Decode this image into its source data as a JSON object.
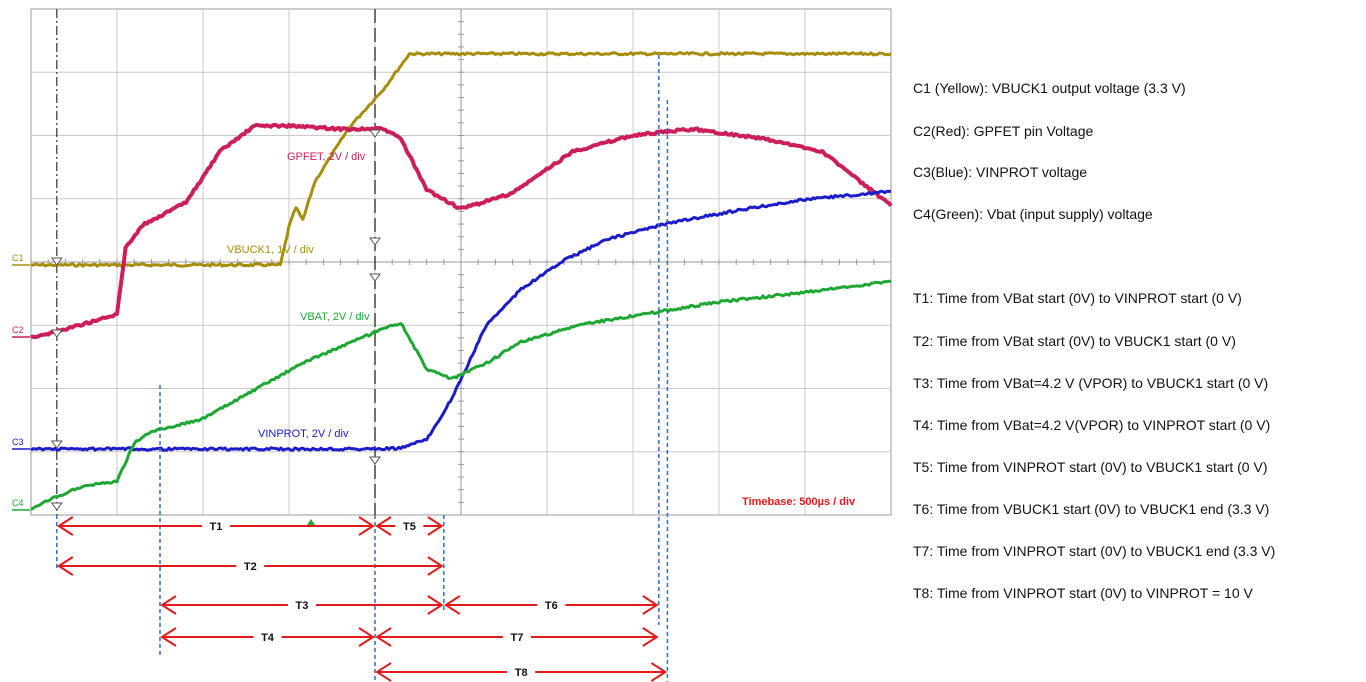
{
  "chart_data": {
    "type": "line",
    "title": "",
    "timebase_label": "Timebase: 500µs / div",
    "x_unit": "µs",
    "xlim": [
      0,
      5000
    ],
    "grid": true,
    "divisions": {
      "x": 10,
      "y": 8
    },
    "channel_markers": [
      "C1",
      "C2",
      "C3",
      "C4"
    ],
    "series": [
      {
        "name": "VBUCK1, 1V / div",
        "channel": "C1",
        "color": "#a68e0c",
        "x": [
          0,
          850,
          1100,
          1200,
          1300,
          1400,
          1450,
          1500,
          1540,
          1580,
          1650,
          1850,
          2050,
          2200,
          2500,
          3000,
          3500,
          4000,
          4500,
          5000
        ],
        "y": [
          0,
          0,
          0,
          0,
          0,
          0,
          0,
          0.6,
          0.9,
          0.7,
          1.3,
          2.15,
          2.75,
          3.3,
          3.3,
          3.3,
          3.3,
          3.3,
          3.3,
          3.3
        ]
      },
      {
        "name": "GPFET, 2V / div",
        "channel": "C2",
        "color": "#cc1f5a",
        "x": [
          0,
          100,
          300,
          500,
          550,
          650,
          900,
          1100,
          1300,
          1500,
          1800,
          2050,
          2150,
          2300,
          2500,
          2800,
          3150,
          3500,
          3850,
          4250,
          4600,
          5000
        ],
        "y": [
          0,
          0.1,
          0.4,
          0.7,
          2.8,
          3.5,
          4.2,
          5.8,
          6.6,
          6.6,
          6.5,
          6.5,
          6.2,
          4.6,
          4.0,
          4.5,
          5.8,
          6.3,
          6.5,
          6.2,
          5.8,
          4.1
        ]
      },
      {
        "name": "VINPROT, 2V / div",
        "channel": "C3",
        "color": "#1c1cc8",
        "x": [
          0,
          1500,
          2000,
          2150,
          2300,
          2450,
          2650,
          2850,
          3100,
          3350,
          3700,
          4100,
          4500,
          5000
        ],
        "y": [
          0,
          0,
          0,
          0.05,
          0.6,
          3.2,
          7.8,
          10.0,
          11.8,
          13.1,
          14.1,
          14.9,
          15.6,
          16.1
        ]
      },
      {
        "name": "VBAT, 2V / div",
        "channel": "C4",
        "color": "#1ea833",
        "x": [
          0,
          100,
          300,
          500,
          600,
          700,
          1000,
          1300,
          1600,
          2000,
          2150,
          2300,
          2450,
          2650,
          2850,
          3200,
          3600,
          4000,
          4500,
          5000
        ],
        "y": [
          0,
          0.6,
          1.5,
          1.8,
          4.2,
          4.9,
          5.7,
          7.5,
          9.3,
          11.1,
          11.7,
          8.8,
          8.2,
          9.2,
          10.5,
          11.6,
          12.3,
          13.0,
          13.6,
          14.3
        ]
      }
    ],
    "timing_labels": [
      "T1",
      "T2",
      "T3",
      "T4",
      "T5",
      "T6",
      "T7",
      "T8"
    ],
    "timing_spans": [
      {
        "label": "T1",
        "x_start": 150,
        "x_end": 2000
      },
      {
        "label": "T2",
        "x_start": 150,
        "x_end": 2400
      },
      {
        "label": "T3",
        "x_start": 750,
        "x_end": 2400
      },
      {
        "label": "T4",
        "x_start": 750,
        "x_end": 2000
      },
      {
        "label": "T5",
        "x_start": 2000,
        "x_end": 2400
      },
      {
        "label": "T6",
        "x_start": 2400,
        "x_end": 3650
      },
      {
        "label": "T7",
        "x_start": 2000,
        "x_end": 3650
      },
      {
        "label": "T8",
        "x_start": 2000,
        "x_end": 3700
      }
    ]
  },
  "legend": {
    "channels": [
      "C1 (Yellow): VBUCK1 output voltage (3.3 V)",
      "C2(Red): GPFET pin Voltage",
      "C3(Blue): VINPROT voltage",
      "C4(Green): Vbat (input supply) voltage"
    ],
    "timings": [
      "T1: Time from VBat start (0V) to VINPROT start (0 V)",
      "T2: Time from VBat start (0V) to VBUCK1 start (0 V)",
      "T3: Time from VBat=4.2 V (VPOR) to VBUCK1 start (0 V)",
      "T4: Time from VBat=4.2 V(VPOR) to VINPROT start (0 V)",
      "T5: Time from VINPROT start (0V) to VBUCK1 start (0 V)",
      "T6: Time from VBUCK1 start (0V) to VBUCK1 end (3.3 V)",
      "T7: Time from VINPROT start (0V) to VBUCK1 end (3.3 V)",
      "T8: Time from VINPROT start (0V) to VINPROT = 10 V"
    ]
  },
  "colors": {
    "arrow": "#e31a1a",
    "guide": "#2f6fc0",
    "grid": "#c9c9c9"
  }
}
